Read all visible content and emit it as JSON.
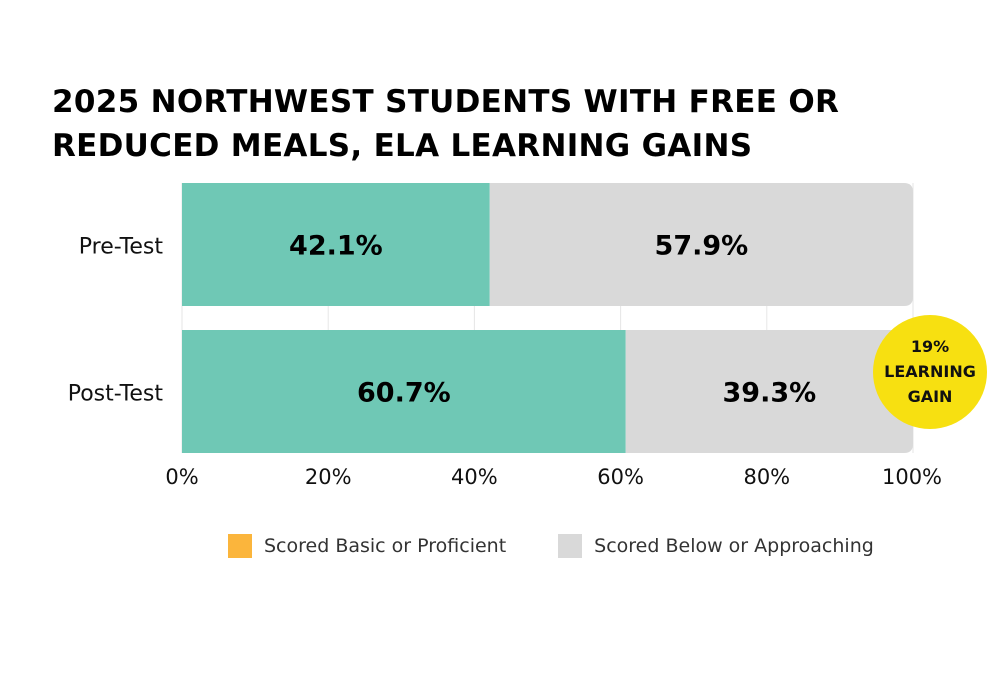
{
  "chart_data": {
    "type": "bar",
    "orientation": "horizontal",
    "stacked": true,
    "title": "2025 NORTHWEST STUDENTS WITH FREE OR REDUCED MEALS, ELA LEARNING GAINS",
    "categories": [
      "Pre-Test",
      "Post-Test"
    ],
    "series": [
      {
        "name": "Scored Basic or Proficient",
        "values": [
          42.1,
          60.7
        ],
        "labels": [
          "42.1%",
          "60.7%"
        ],
        "color": "#6fc8b5",
        "legend_color": "#fbb53c"
      },
      {
        "name": "Scored Below or Approaching",
        "values": [
          57.9,
          39.3
        ],
        "labels": [
          "57.9%",
          "39.3%"
        ],
        "color": "#d9d9d9",
        "legend_color": "#d9d9d9"
      }
    ],
    "xlim": [
      0,
      100
    ],
    "x_ticks": [
      0,
      20,
      40,
      60,
      80,
      100
    ],
    "x_tick_labels": [
      "0%",
      "20%",
      "40%",
      "60%",
      "80%",
      "100%"
    ],
    "grid": true,
    "legend_position": "bottom",
    "annotation": {
      "lines": [
        "19%",
        "LEARNING",
        "GAIN"
      ],
      "color": "#f7e011"
    }
  }
}
